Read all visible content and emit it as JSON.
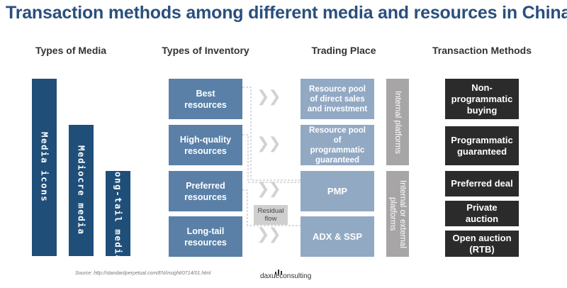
{
  "title": "Transaction methods among different media and resources in China",
  "columns": {
    "media": "Types of Media",
    "inventory": "Types of Inventory",
    "trading": "Trading Place",
    "methods": "Transaction Methods"
  },
  "media": [
    "Media icons",
    "Mediocre media",
    "Long-tail\nmedia"
  ],
  "inventory": [
    "Best\nresources",
    "High-quality\nresources",
    "Preferred\nresources",
    "Long-tail\nresources"
  ],
  "trading": [
    "Resource pool\nof direct sales\nand investment",
    "Resource pool\nof\nprogrammatic\nguaranteed",
    "PMP",
    "ADX & SSP"
  ],
  "platforms": [
    "Internal platforms",
    "Internal or external\nplatforms"
  ],
  "residual": "Residual\nflow",
  "methods": [
    "Non-\nprogrammatic\nbuying",
    "Programmatic\nguaranteed",
    "Preferred deal",
    "Private\nauction",
    "Open auction\n(RTB)"
  ],
  "chevron": "❯❯",
  "source": "Source: http://standardperpetual.com/EN/insight/0714/01.html",
  "logo": "daxueconsulting",
  "colors": {
    "title": "#2a4f7c",
    "media": "#1f4e79",
    "inventory": "#5a80a8",
    "trading": "#92a9c4",
    "platform": "#a7a5a5",
    "method": "#2b2b2b"
  }
}
